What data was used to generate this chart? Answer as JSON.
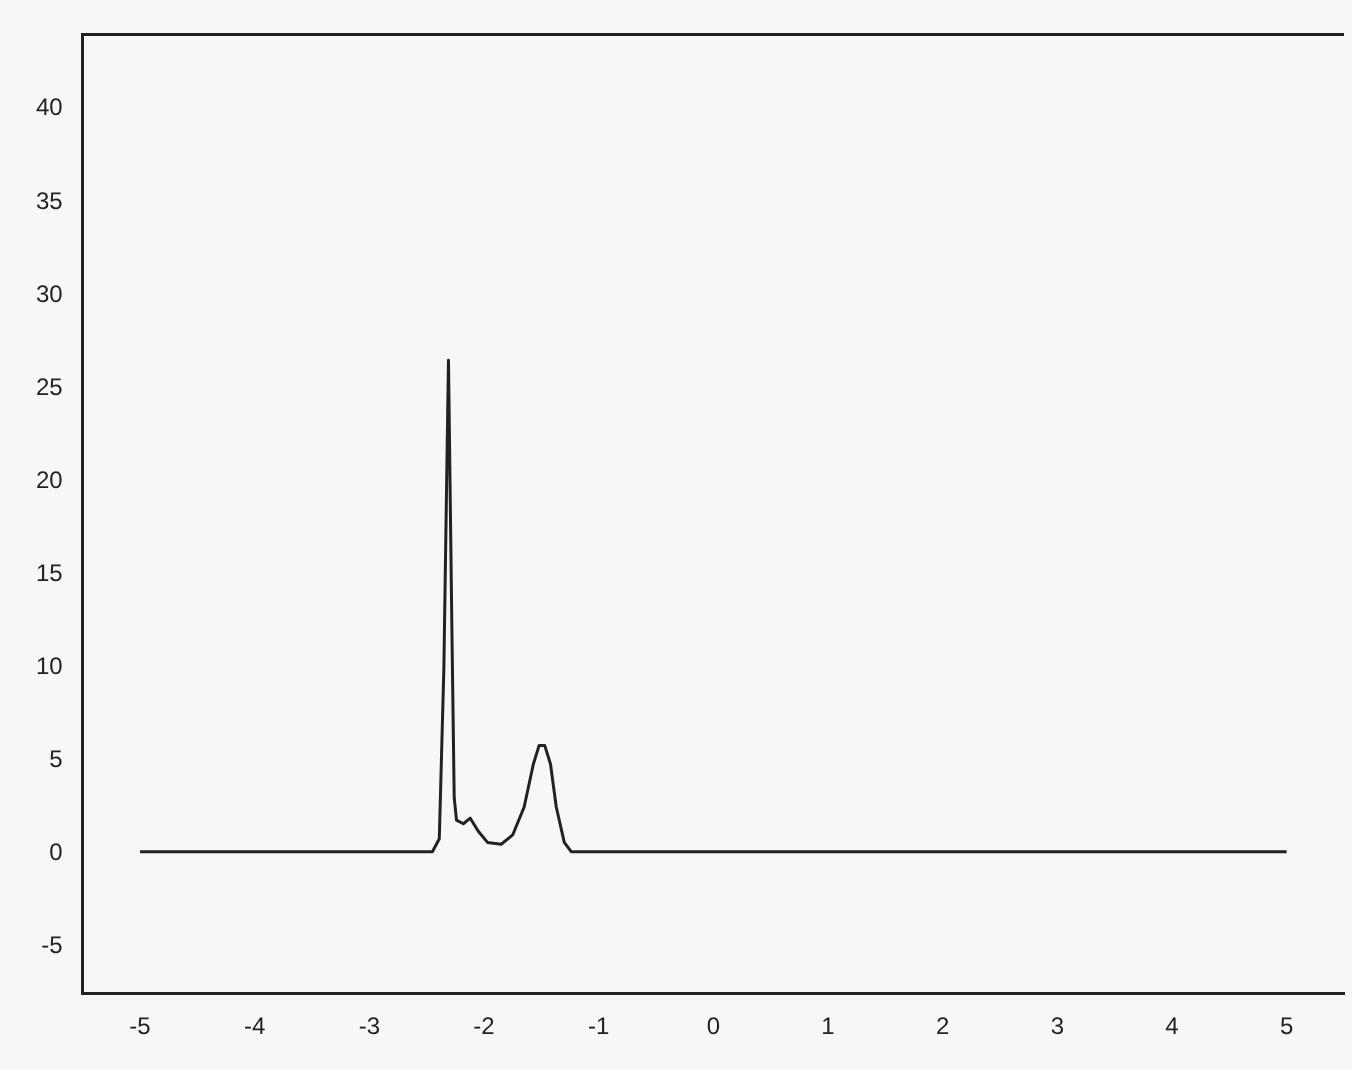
{
  "chart_data": {
    "type": "line",
    "xlim": [
      -5.5,
      5.5
    ],
    "xticks": [
      -5,
      -4,
      -3,
      -2,
      -1,
      0,
      1,
      2,
      3,
      4,
      5
    ],
    "ylim": [
      -7.5,
      44
    ],
    "yticks": [
      -5,
      0,
      5,
      10,
      15,
      20,
      25,
      30,
      35,
      40
    ],
    "grid": false,
    "legend": false,
    "marker": "none",
    "line_style": "solid",
    "series": [
      {
        "color": "#222222",
        "x": [
          -5,
          -3,
          -2.45,
          -2.39,
          -2.35,
          -2.31,
          -2.28,
          -2.26,
          -2.24,
          -2.18,
          -2.12,
          -2.05,
          -1.97,
          -1.85,
          -1.75,
          -1.65,
          -1.57,
          -1.52,
          -1.47,
          -1.42,
          -1.37,
          -1.3,
          -1.24,
          -1.2,
          0,
          5
        ],
        "values": [
          0.1,
          0.1,
          0.1,
          0.8,
          10,
          26.5,
          12,
          3,
          1.8,
          1.6,
          1.9,
          1.2,
          0.6,
          0.5,
          1,
          2.5,
          4.8,
          5.8,
          5.8,
          4.8,
          2.5,
          0.6,
          0.1,
          0.1,
          0.1,
          0.1
        ]
      }
    ]
  }
}
